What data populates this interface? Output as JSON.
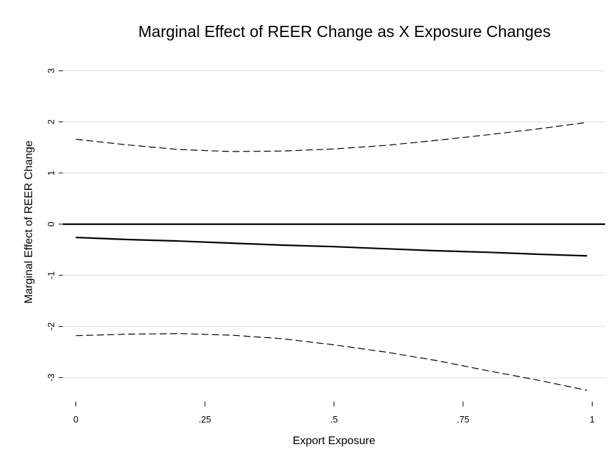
{
  "chart_data": {
    "type": "line",
    "title": "Marginal Effect of REER Change as X Exposure Changes",
    "xlabel": "Export Exposure",
    "ylabel": "Marginal Effect of REER Change",
    "xlim": [
      -0.025,
      1.025
    ],
    "ylim": [
      -3.4,
      3.4
    ],
    "grid": true,
    "x_ticks": [
      0,
      0.25,
      0.5,
      0.75,
      1
    ],
    "x_tick_labels": [
      "0",
      ".25",
      ".5",
      ".75",
      "1"
    ],
    "y_ticks": [
      -3,
      -2,
      -1,
      0,
      1,
      2,
      3
    ],
    "y_tick_labels": [
      "-3",
      "-2",
      "-1",
      "0",
      "1",
      "2",
      "3"
    ],
    "reference_line": {
      "y": 0,
      "style": "solid"
    },
    "x": [
      0,
      0.1,
      0.2,
      0.3,
      0.4,
      0.5,
      0.6,
      0.7,
      0.8,
      0.9,
      0.99
    ],
    "series": [
      {
        "style": "solid",
        "values": [
          -0.26,
          -0.3,
          -0.33,
          -0.37,
          -0.41,
          -0.44,
          -0.48,
          -0.52,
          -0.55,
          -0.59,
          -0.62
        ]
      },
      {
        "style": "dashed",
        "values": [
          1.66,
          1.55,
          1.46,
          1.42,
          1.43,
          1.47,
          1.54,
          1.64,
          1.75,
          1.87,
          1.99
        ]
      },
      {
        "style": "dashed",
        "values": [
          -2.18,
          -2.15,
          -2.14,
          -2.17,
          -2.24,
          -2.36,
          -2.5,
          -2.67,
          -2.87,
          -3.06,
          -3.25
        ]
      }
    ]
  }
}
